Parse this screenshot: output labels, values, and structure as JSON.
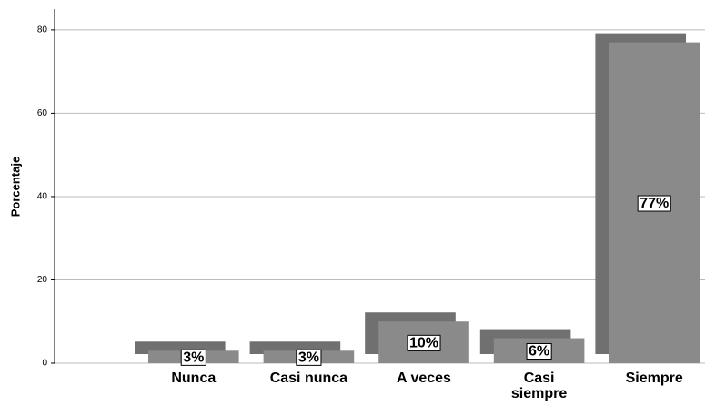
{
  "chart_data": {
    "type": "bar",
    "y_label": "Porcentaje",
    "categories": [
      "Nunca",
      "Casi nunca",
      "A veces",
      "Casi siempre",
      "Siempre"
    ],
    "values": [
      3,
      3,
      10,
      6,
      77
    ],
    "value_labels": [
      "3%",
      "3%",
      "10%",
      "6%",
      "77%"
    ],
    "color": "#8a8a8a",
    "ylim": [
      0,
      85
    ],
    "yticks": [
      0,
      20,
      40,
      60,
      80
    ],
    "grid": true
  }
}
